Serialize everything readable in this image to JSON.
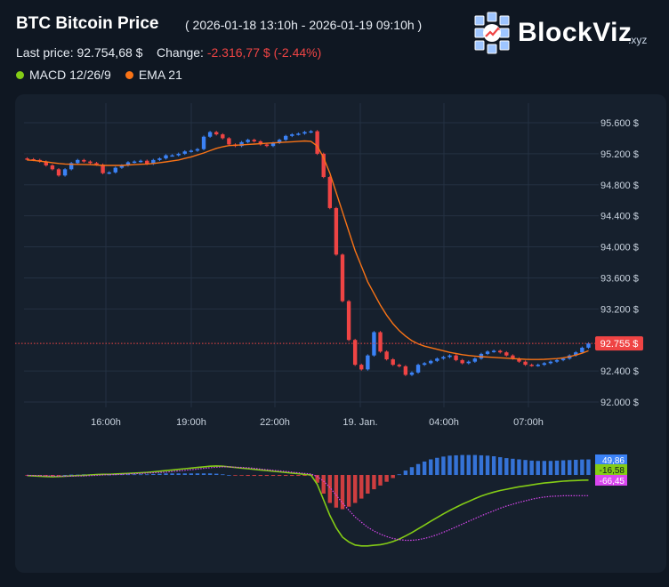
{
  "header": {
    "title": "BTC Bitcoin Price",
    "range": "( 2026-01-18 13:10h - 2026-01-19 09:10h )",
    "last_price_label": "Last price:",
    "last_price": "92.754,68 $",
    "change_label": "Change:",
    "change": "-2.316,77 $ (-2.44%)"
  },
  "legend": [
    {
      "label": "MACD 12/26/9",
      "color": "#84cc16"
    },
    {
      "label": "EMA 21",
      "color": "#f97316"
    }
  ],
  "logo": {
    "name": "BlockViz",
    "suffix": ".xyz"
  },
  "colors": {
    "up": "#3b82f6",
    "down": "#ef4444",
    "ema": "#f97316",
    "macd": "#84cc16",
    "signal": "#d946ef",
    "hist_pos": "#3b82f6",
    "hist_neg": "#ef4444"
  },
  "chart_data": {
    "type": "candlestick",
    "x_ticks": [
      "16:00h",
      "19:00h",
      "22:00h",
      "19. Jan.",
      "04:00h",
      "07:00h"
    ],
    "y_ticks": [
      "95.600 $",
      "95.200 $",
      "94.800 $",
      "94.400 $",
      "94.000 $",
      "93.600 $",
      "93.200 $",
      "92.755 $",
      "92.400 $",
      "92.000 $"
    ],
    "ylim": [
      92000,
      95800
    ],
    "last_price": 92755,
    "last_price_label": "92.755 $",
    "price_series": [
      95130,
      95120,
      95100,
      95050,
      95000,
      94920,
      95000,
      95080,
      95120,
      95100,
      95080,
      95060,
      94950,
      94960,
      95020,
      95050,
      95090,
      95100,
      95110,
      95070,
      95120,
      95140,
      95180,
      95180,
      95200,
      95230,
      95240,
      95260,
      95420,
      95480,
      95450,
      95400,
      95320,
      95300,
      95350,
      95380,
      95360,
      95320,
      95300,
      95340,
      95380,
      95430,
      95450,
      95460,
      95480,
      95490,
      95200,
      94900,
      94500,
      93900,
      93300,
      92800,
      92480,
      92420,
      92600,
      92900,
      92650,
      92550,
      92480,
      92460,
      92350,
      92380,
      92480,
      92500,
      92530,
      92560,
      92580,
      92600,
      92540,
      92500,
      92520,
      92560,
      92620,
      92650,
      92660,
      92640,
      92600,
      92560,
      92520,
      92480,
      92470,
      92480,
      92500,
      92520,
      92540,
      92560,
      92600,
      92640,
      92700,
      92755
    ],
    "ema21_series": [
      95120,
      95115,
      95105,
      95095,
      95085,
      95075,
      95068,
      95065,
      95063,
      95062,
      95060,
      95055,
      95050,
      95050,
      95050,
      95050,
      95055,
      95060,
      95065,
      95068,
      95075,
      95085,
      95095,
      95108,
      95120,
      95140,
      95160,
      95185,
      95210,
      95240,
      95270,
      95290,
      95305,
      95310,
      95315,
      95320,
      95325,
      95330,
      95335,
      95340,
      95345,
      95350,
      95355,
      95360,
      95365,
      95360,
      95300,
      95150,
      94950,
      94700,
      94450,
      94200,
      93950,
      93750,
      93550,
      93400,
      93250,
      93120,
      93010,
      92920,
      92850,
      92790,
      92750,
      92720,
      92700,
      92680,
      92660,
      92640,
      92625,
      92610,
      92600,
      92592,
      92585,
      92580,
      92575,
      92570,
      92565,
      92560,
      92555,
      92550,
      92548,
      92548,
      92550,
      92555,
      92560,
      92570,
      92585,
      92605,
      92630,
      92660
    ],
    "macd_axis_labels": [
      "49,86",
      "-16,58",
      "-66,45"
    ],
    "macd_series": [
      -2,
      -3,
      -4,
      -5,
      -6,
      -5,
      -4,
      -3,
      -2,
      -1,
      0,
      1,
      2,
      2,
      3,
      4,
      5,
      6,
      7,
      8,
      10,
      12,
      14,
      16,
      18,
      20,
      22,
      24,
      26,
      28,
      29,
      28,
      26,
      24,
      22,
      20,
      18,
      16,
      14,
      12,
      10,
      8,
      6,
      4,
      2,
      0,
      -30,
      -80,
      -130,
      -170,
      -200,
      -215,
      -225,
      -228,
      -228,
      -226,
      -224,
      -220,
      -214,
      -206,
      -196,
      -185,
      -173,
      -161,
      -149,
      -137,
      -125,
      -114,
      -104,
      -94,
      -85,
      -76,
      -68,
      -61,
      -55,
      -50,
      -46,
      -42,
      -38,
      -35,
      -32,
      -29,
      -26,
      -24,
      -22,
      -20,
      -19,
      -18,
      -17,
      -16.58
    ],
    "signal_series": [
      -1,
      -2,
      -2,
      -3,
      -3,
      -4,
      -4,
      -4,
      -3,
      -3,
      -2,
      -1,
      0,
      1,
      1,
      2,
      3,
      4,
      5,
      6,
      7,
      8,
      9,
      11,
      13,
      15,
      17,
      19,
      21,
      23,
      25,
      26,
      26,
      25,
      24,
      23,
      21,
      19,
      17,
      15,
      13,
      11,
      9,
      7,
      5,
      3,
      -5,
      -20,
      -40,
      -65,
      -90,
      -113,
      -135,
      -152,
      -168,
      -180,
      -190,
      -198,
      -204,
      -208,
      -210,
      -210,
      -208,
      -204,
      -199,
      -192,
      -184,
      -176,
      -167,
      -158,
      -149,
      -140,
      -131,
      -123,
      -115,
      -107,
      -100,
      -94,
      -88,
      -83,
      -78,
      -74,
      -71,
      -69,
      -68,
      -67,
      -66.8,
      -66.7,
      -66.6,
      -66.45
    ]
  }
}
